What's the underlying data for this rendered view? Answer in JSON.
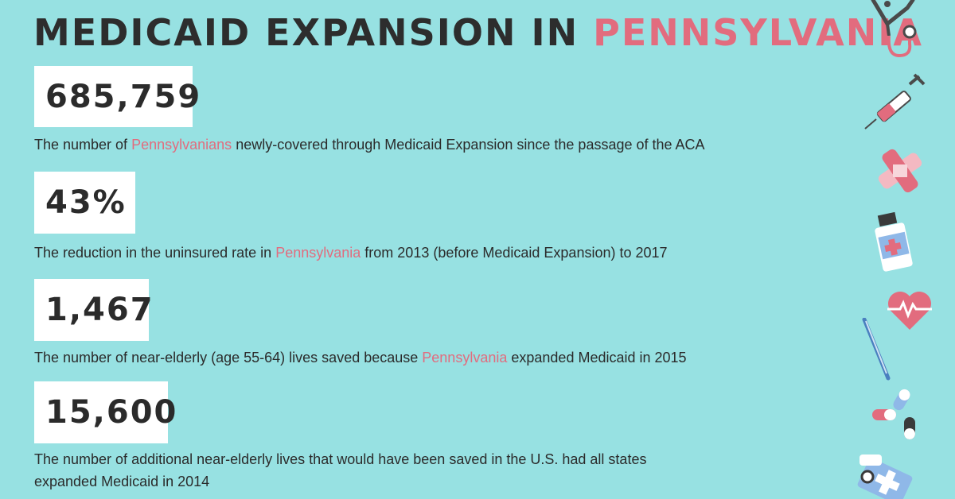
{
  "header": {
    "title_prefix": "MEDICAID EXPANSION IN",
    "title_highlight": "PENNSYLVANIA"
  },
  "stats": [
    {
      "value": "685,759",
      "desc_before": "The number of",
      "desc_highlight": "Pennsylvanians",
      "desc_after": "newly-covered through Medicaid Expansion since the passage of the ACA"
    },
    {
      "value": "43%",
      "desc_before": "The reduction in the uninsured rate in",
      "desc_highlight": "Pennsylvania",
      "desc_after": "from 2013 (before Medicaid Expansion) to 2017"
    },
    {
      "value": "1,467",
      "desc_before": "The number of near-elderly (age 55-64) lives saved because",
      "desc_highlight": "Pennsylvania",
      "desc_after": "expanded Medicaid in 2015"
    },
    {
      "value": "15,600",
      "desc_line1": "The number of additional near-elderly lives that would have been saved in the U.S. had all states",
      "desc_line2": "expanded Medicaid in 2014"
    }
  ],
  "colors": {
    "background": "#97E1E2",
    "accent": "#E26C7E",
    "text": "#2b2b2b",
    "box": "#ffffff"
  },
  "icons": [
    "stethoscope-icon",
    "syringe-icon",
    "bandage-icon",
    "pill-bottle-icon",
    "heart-pulse-icon",
    "thermometer-icon",
    "capsules-icon",
    "medical-kit-icon"
  ]
}
